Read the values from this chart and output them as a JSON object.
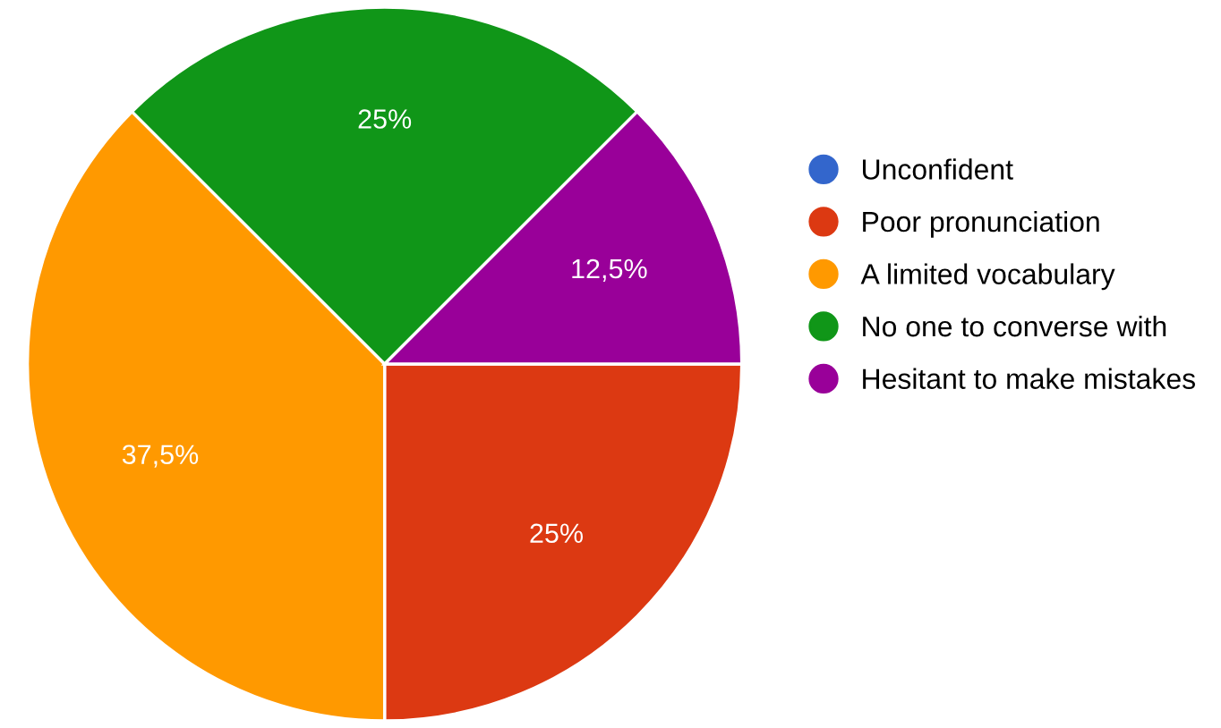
{
  "chart_data": {
    "type": "pie",
    "categories": [
      "Unconfident",
      "Poor pronunciation",
      "A limited vocabulary",
      "No one to converse with",
      "Hesitant to make mistakes"
    ],
    "values": [
      0,
      25,
      37.5,
      25,
      12.5
    ],
    "colors": [
      "#3366cc",
      "#dc3912",
      "#ff9900",
      "#109618",
      "#990099"
    ],
    "value_labels": [
      null,
      "25%",
      "37,5%",
      "25%",
      "12,5%"
    ],
    "legend": "right"
  }
}
